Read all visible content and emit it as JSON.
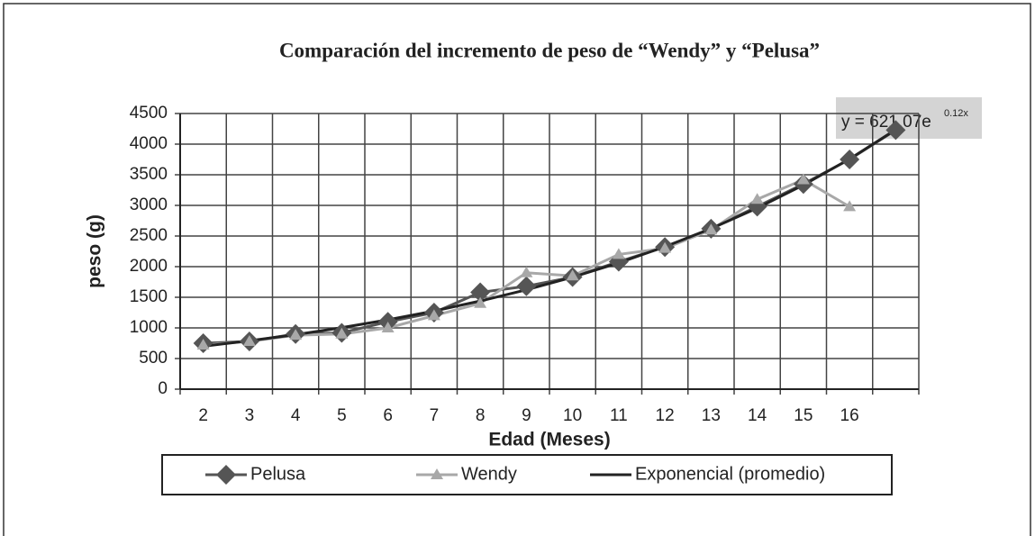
{
  "chart_data": {
    "type": "line",
    "title": "Comparación del incremento de peso de “Wendy” y “Pelusa”",
    "annotation": {
      "text": "y = 621.07e",
      "superscript": "0.12x"
    },
    "x_label": "Edad (Meses)",
    "y_label": "peso (g)",
    "categories": [
      "2",
      "3",
      "4",
      "5",
      "6",
      "7",
      "8",
      "9",
      "10",
      "11",
      "12",
      "13",
      "14",
      "15",
      "16",
      null
    ],
    "series": [
      {
        "name": "Pelusa",
        "color": "#555555",
        "marker": "diamond",
        "values": [
          750,
          780,
          900,
          920,
          1100,
          1250,
          1580,
          1680,
          1830,
          2080,
          2320,
          2620,
          2980,
          3350,
          3750,
          4230
        ]
      },
      {
        "name": "Wendy",
        "color": "#a8a8a8",
        "marker": "triangle",
        "values": [
          720,
          780,
          880,
          900,
          1000,
          1200,
          1400,
          1900,
          1850,
          2200,
          2300,
          2600,
          3100,
          3420,
          2980,
          null
        ]
      },
      {
        "name": "Exponencial (promedio)",
        "color": "#222222",
        "marker": "none",
        "values": [
          700,
          790,
          890,
          1004,
          1132,
          1276,
          1439,
          1622,
          1829,
          2062,
          2325,
          2621,
          2956,
          3332,
          3757,
          4236
        ]
      }
    ],
    "ylim": [
      0,
      4500
    ],
    "yticks": [
      0,
      500,
      1000,
      1500,
      2000,
      2500,
      3000,
      3500,
      4000,
      4500
    ],
    "grid": true
  }
}
